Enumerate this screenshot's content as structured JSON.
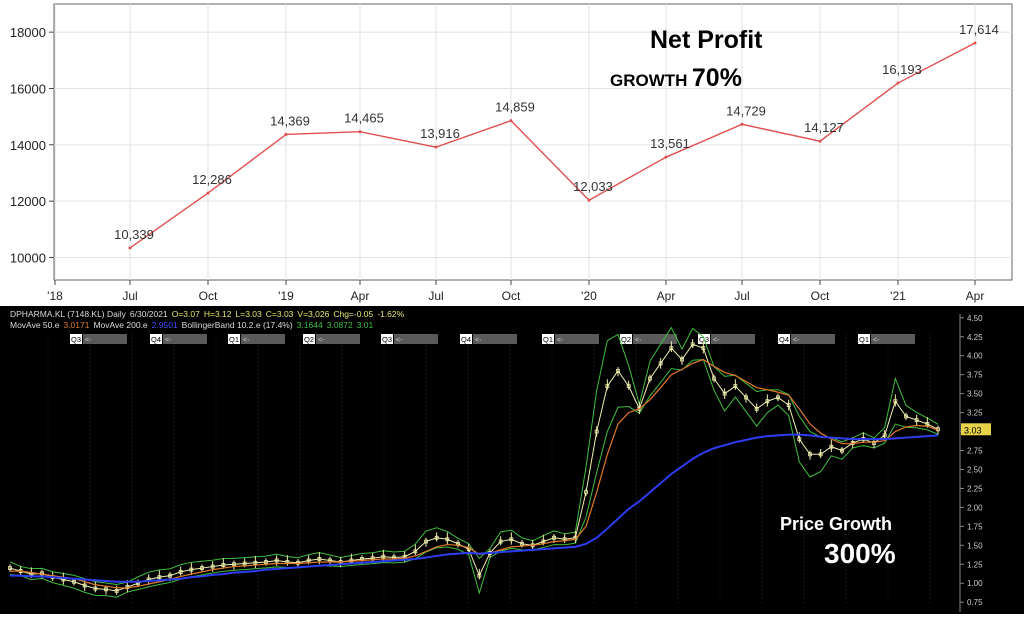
{
  "chart_data": [
    {
      "type": "line",
      "title": "",
      "xlabel": "",
      "ylabel": "",
      "x_tick_labels": [
        "'18",
        "Jul",
        "Oct",
        "'19",
        "Apr",
        "Jul",
        "Oct",
        "'20",
        "Apr",
        "Jul",
        "Oct",
        "'21",
        "Apr"
      ],
      "x_tick_dates": [
        "2018-01",
        "2018-07",
        "2018-10",
        "2019-01",
        "2019-04",
        "2019-07",
        "2019-10",
        "2020-01",
        "2020-04",
        "2020-07",
        "2020-10",
        "2021-01",
        "2021-04"
      ],
      "y_ticks": [
        10000,
        12000,
        14000,
        16000,
        18000
      ],
      "ylim": [
        9200,
        19000
      ],
      "grid": true,
      "series": [
        {
          "color": "#e05050",
          "points": [
            {
              "x": "2018-07",
              "y": 10339,
              "label": "10,339"
            },
            {
              "x": "2018-10",
              "y": 12286,
              "label": "12,286"
            },
            {
              "x": "2019-01",
              "y": 14369,
              "label": "14,369"
            },
            {
              "x": "2019-04",
              "y": 14465,
              "label": "14,465"
            },
            {
              "x": "2019-07",
              "y": 13916,
              "label": "13,916"
            },
            {
              "x": "2019-10",
              "y": 14859,
              "label": "14,859"
            },
            {
              "x": "2020-01",
              "y": 12033,
              "label": "12,033"
            },
            {
              "x": "2020-04",
              "y": 13561,
              "label": "13,561"
            },
            {
              "x": "2020-07",
              "y": 14729,
              "label": "14,729"
            },
            {
              "x": "2020-10",
              "y": 14127,
              "label": "14,127"
            },
            {
              "x": "2021-01",
              "y": 16193,
              "label": "16,193"
            },
            {
              "x": "2021-04",
              "y": 17614,
              "label": "17,614"
            }
          ]
        }
      ],
      "annotation": {
        "line1": "Net Profit",
        "line2_prefix": "GROWTH",
        "line2_value": "70%"
      }
    },
    {
      "type": "line",
      "title": "",
      "header_lines": {
        "ticker": "DPHARMA.KL (7148.KL) Daily",
        "date": "6/30/2021",
        "open": "O=3.07",
        "high": "H=3.12",
        "low": "L=3.03",
        "close": "C=3.03",
        "volume": "V=3,026",
        "change": "Chg=-0.05",
        "change_pct": "-1.62%",
        "ma50_label": "MovAve 50.e",
        "ma50_value": "3.0171",
        "ma200_label": "MovAve 200.e",
        "ma200_value": "2.9501",
        "bb_label": "BollingerBand 10.2.e (17.4%)",
        "bb_upper": "3.1644",
        "bb_mid": "3.0872",
        "bb_lower": "3.01"
      },
      "quarter_markers": [
        "Q3",
        "Q4",
        "Q1",
        "Q2",
        "Q3",
        "Q4",
        "Q1",
        "Q2",
        "Q3",
        "Q4",
        "Q1"
      ],
      "quarter_marker_suffix": "<-",
      "y_ticks": [
        "4.50",
        "4.25",
        "4.00",
        "3.75",
        "3.50",
        "3.25",
        "3.00",
        "2.75",
        "2.50",
        "2.25",
        "2.00",
        "1.75",
        "1.50",
        "1.25",
        "1.00",
        "0.75"
      ],
      "ylim": [
        0.7,
        4.55
      ],
      "last_price_label": "3.03",
      "colors": {
        "price": "#f2f2b0",
        "ma50": "#e07a2a",
        "ma200": "#2d3cf0",
        "bollinger": "#3fbf3f",
        "last_price_bg": "#e8d24a"
      },
      "series": [
        {
          "name": "Price",
          "values": [
            1.2,
            1.16,
            1.12,
            1.13,
            1.08,
            1.05,
            1.02,
            0.97,
            0.93,
            0.92,
            0.9,
            0.95,
            1.0,
            1.05,
            1.08,
            1.1,
            1.15,
            1.18,
            1.2,
            1.22,
            1.24,
            1.25,
            1.26,
            1.27,
            1.28,
            1.3,
            1.28,
            1.27,
            1.3,
            1.32,
            1.3,
            1.28,
            1.3,
            1.32,
            1.33,
            1.35,
            1.34,
            1.35,
            1.42,
            1.55,
            1.6,
            1.58,
            1.52,
            1.45,
            1.1,
            1.4,
            1.55,
            1.58,
            1.52,
            1.5,
            1.55,
            1.6,
            1.58,
            1.6,
            2.2,
            3.0,
            3.6,
            3.8,
            3.6,
            3.3,
            3.7,
            3.9,
            4.1,
            3.95,
            4.15,
            4.1,
            3.7,
            3.5,
            3.6,
            3.45,
            3.3,
            3.4,
            3.45,
            3.35,
            2.9,
            2.7,
            2.7,
            2.8,
            2.75,
            2.85,
            2.9,
            2.85,
            2.95,
            3.4,
            3.2,
            3.15,
            3.1,
            3.03
          ]
        },
        {
          "name": "MovAve 50.e",
          "values": [
            1.16,
            1.16,
            1.14,
            1.12,
            1.1,
            1.08,
            1.06,
            1.02,
            0.98,
            0.96,
            0.94,
            0.94,
            0.96,
            0.99,
            1.02,
            1.05,
            1.09,
            1.12,
            1.15,
            1.18,
            1.2,
            1.22,
            1.23,
            1.24,
            1.25,
            1.26,
            1.26,
            1.26,
            1.27,
            1.28,
            1.28,
            1.28,
            1.29,
            1.3,
            1.31,
            1.32,
            1.32,
            1.33,
            1.36,
            1.42,
            1.48,
            1.51,
            1.5,
            1.47,
            1.38,
            1.4,
            1.44,
            1.48,
            1.49,
            1.5,
            1.52,
            1.55,
            1.56,
            1.58,
            1.75,
            2.2,
            2.7,
            3.1,
            3.25,
            3.3,
            3.42,
            3.58,
            3.75,
            3.82,
            3.9,
            3.95,
            3.86,
            3.78,
            3.74,
            3.66,
            3.58,
            3.55,
            3.52,
            3.48,
            3.3,
            3.1,
            2.98,
            2.9,
            2.84,
            2.84,
            2.86,
            2.86,
            2.88,
            3.0,
            3.06,
            3.08,
            3.07,
            3.02
          ]
        },
        {
          "name": "MovAve 200.e",
          "values": [
            1.1,
            1.1,
            1.09,
            1.09,
            1.08,
            1.07,
            1.06,
            1.05,
            1.04,
            1.03,
            1.02,
            1.02,
            1.02,
            1.03,
            1.04,
            1.05,
            1.06,
            1.08,
            1.09,
            1.11,
            1.12,
            1.14,
            1.15,
            1.16,
            1.18,
            1.19,
            1.2,
            1.21,
            1.22,
            1.23,
            1.24,
            1.25,
            1.26,
            1.27,
            1.28,
            1.29,
            1.3,
            1.31,
            1.32,
            1.34,
            1.36,
            1.38,
            1.39,
            1.4,
            1.39,
            1.4,
            1.41,
            1.42,
            1.43,
            1.44,
            1.45,
            1.46,
            1.47,
            1.48,
            1.52,
            1.6,
            1.72,
            1.85,
            1.98,
            2.08,
            2.2,
            2.32,
            2.44,
            2.54,
            2.64,
            2.72,
            2.78,
            2.82,
            2.86,
            2.89,
            2.92,
            2.94,
            2.95,
            2.96,
            2.96,
            2.95,
            2.93,
            2.92,
            2.91,
            2.9,
            2.9,
            2.9,
            2.9,
            2.91,
            2.92,
            2.93,
            2.94,
            2.95
          ]
        }
      ],
      "annotation": {
        "line1": "Price Growth",
        "line2": "300%"
      }
    }
  ]
}
